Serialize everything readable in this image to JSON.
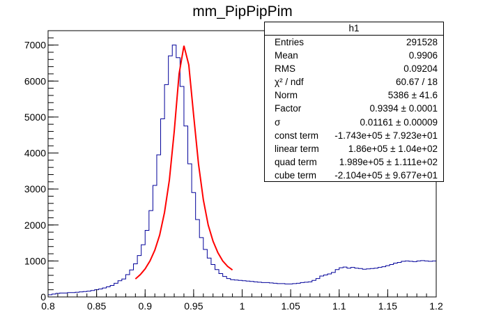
{
  "chart_data": {
    "type": "histogram",
    "title": "mm_PipPipPim",
    "xlim": [
      0.8,
      1.2
    ],
    "ylim": [
      0,
      7400
    ],
    "x_ticks": [
      "0.8",
      "0.85",
      "0.9",
      "0.95",
      "1",
      "1.05",
      "1.1",
      "1.15",
      "1.2"
    ],
    "x_tick_values": [
      0.8,
      0.85,
      0.9,
      0.95,
      1.0,
      1.05,
      1.1,
      1.15,
      1.2
    ],
    "y_ticks": [
      "0",
      "1000",
      "2000",
      "3000",
      "4000",
      "5000",
      "6000",
      "7000"
    ],
    "y_tick_values": [
      0,
      1000,
      2000,
      3000,
      4000,
      5000,
      6000,
      7000
    ],
    "histogram": {
      "name": "h1",
      "bin_width": 0.004,
      "x_start": 0.8,
      "values": [
        60,
        80,
        100,
        110,
        110,
        120,
        120,
        130,
        140,
        150,
        160,
        180,
        200,
        220,
        250,
        280,
        320,
        380,
        450,
        500,
        620,
        750,
        920,
        1150,
        1450,
        1850,
        2400,
        3100,
        3950,
        4950,
        5900,
        6700,
        7000,
        6650,
        5850,
        4750,
        3700,
        2900,
        2150,
        1650,
        1320,
        1080,
        900,
        760,
        650,
        570,
        510,
        480,
        470,
        460,
        450,
        440,
        430,
        420,
        410,
        400,
        400,
        390,
        380,
        370,
        370,
        360,
        360,
        370,
        380,
        400,
        410,
        420,
        460,
        510,
        580,
        610,
        640,
        680,
        760,
        810,
        830,
        800,
        820,
        800,
        790,
        770,
        780,
        790,
        800,
        820,
        840,
        870,
        900,
        940,
        960,
        990,
        1000,
        990,
        980,
        1000,
        1010,
        1000,
        990,
        1000
      ]
    },
    "fit": {
      "color": "#ff0000",
      "x_range": [
        0.89,
        0.99
      ],
      "points": [
        [
          0.89,
          500
        ],
        [
          0.895,
          620
        ],
        [
          0.9,
          780
        ],
        [
          0.905,
          1000
        ],
        [
          0.91,
          1300
        ],
        [
          0.915,
          1720
        ],
        [
          0.92,
          2350
        ],
        [
          0.925,
          3250
        ],
        [
          0.93,
          4600
        ],
        [
          0.935,
          6200
        ],
        [
          0.94,
          6980
        ],
        [
          0.945,
          6450
        ],
        [
          0.95,
          5050
        ],
        [
          0.955,
          3700
        ],
        [
          0.96,
          2700
        ],
        [
          0.965,
          2000
        ],
        [
          0.97,
          1550
        ],
        [
          0.975,
          1230
        ],
        [
          0.98,
          1000
        ],
        [
          0.985,
          850
        ],
        [
          0.99,
          750
        ]
      ]
    },
    "line_color": "#000099",
    "grid": false,
    "legend": "top-right"
  },
  "stats": {
    "title": "h1",
    "rows": [
      {
        "label": "Entries",
        "value": "291528"
      },
      {
        "label": "Mean",
        "value": "0.9906"
      },
      {
        "label": "RMS",
        "value": "0.09204"
      },
      {
        "label": "χ² / ndf",
        "value": "60.67 / 18"
      },
      {
        "label": "Norm",
        "value": "5386 ± 41.6"
      },
      {
        "label": "Factor",
        "value": "0.9394 ± 0.0001"
      },
      {
        "label": "σ",
        "value": "0.01161 ± 0.00009"
      },
      {
        "label": "const term",
        "value": "-1.743e+05 ± 7.923e+01"
      },
      {
        "label": "linear term",
        "value": "1.86e+05 ± 1.04e+02"
      },
      {
        "label": "quad term",
        "value": "1.989e+05 ± 1.111e+02"
      },
      {
        "label": "cube term",
        "value": "-2.104e+05 ± 9.677e+01"
      }
    ]
  }
}
